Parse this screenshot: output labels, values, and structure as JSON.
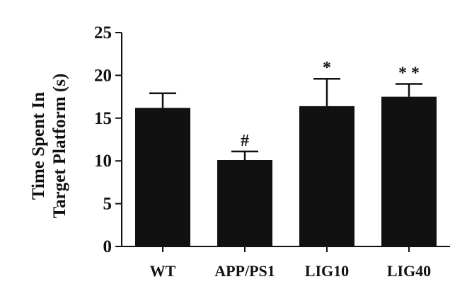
{
  "chart_data": {
    "type": "bar",
    "categories": [
      "WT",
      "APP/PS1",
      "LIG10",
      "LIG40"
    ],
    "values": [
      16.2,
      10.1,
      16.4,
      17.5
    ],
    "errors": [
      1.7,
      1.0,
      3.2,
      1.5
    ],
    "annotations": [
      "",
      "#",
      "*",
      "* *"
    ],
    "ylabel_lines": [
      "Time Spent In",
      "Target Platform (s)"
    ],
    "ylim": [
      0,
      25
    ],
    "yticks": [
      0,
      5,
      10,
      15,
      20,
      25
    ],
    "bar_color": "#111111",
    "grid": false
  }
}
